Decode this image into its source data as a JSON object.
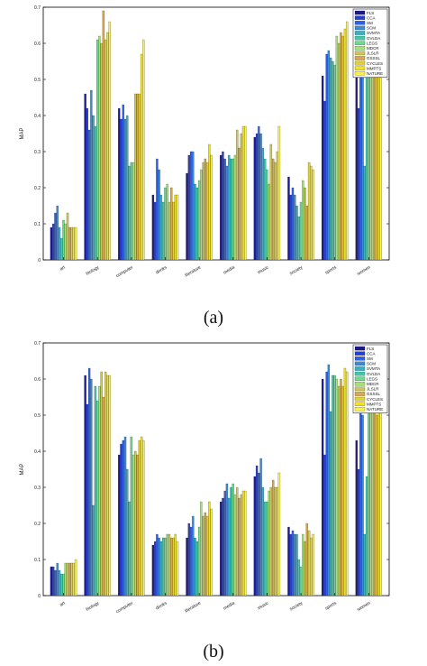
{
  "captions": [
    "(a)",
    "(b)"
  ],
  "colors": [
    "#1a1a8c",
    "#2a3fc8",
    "#3060e0",
    "#3a8ad8",
    "#3aaec8",
    "#40c8a8",
    "#70d890",
    "#a8e078",
    "#c8c860",
    "#d8a850",
    "#e0d040",
    "#f0e030",
    "#f8f050"
  ],
  "chart_data": [
    {
      "type": "bar",
      "ylabel": "MAP",
      "ylim": [
        0,
        0.7
      ],
      "yticks": [
        "0",
        "0.1",
        "0.2",
        "0.3",
        "0.4",
        "0.5",
        "0.6",
        "0.7"
      ],
      "categories": [
        "art",
        "biology",
        "computer",
        "drinks",
        "literature",
        "media",
        "music",
        "society",
        "sports",
        "women"
      ],
      "legend": [
        "FLS",
        "CCA",
        "SM",
        "SCM",
        "SVMTA",
        "GVLDA",
        "LEGS",
        "MDCR",
        "JLSLR",
        "GSSSL",
        "CYCLES",
        "MMPTS",
        "NATURE"
      ],
      "legend_position": "top-right",
      "series": [
        {
          "name": "FLS",
          "values": [
            0.09,
            0.46,
            0.42,
            0.18,
            0.24,
            0.29,
            0.34,
            0.23,
            0.51,
            0.6
          ]
        },
        {
          "name": "CCA",
          "values": [
            0.1,
            0.42,
            0.39,
            0.16,
            0.29,
            0.3,
            0.35,
            0.18,
            0.44,
            0.42
          ]
        },
        {
          "name": "SM",
          "values": [
            0.13,
            0.36,
            0.43,
            0.28,
            0.3,
            0.28,
            0.37,
            0.2,
            0.57,
            0.6
          ]
        },
        {
          "name": "SCM",
          "values": [
            0.15,
            0.47,
            0.39,
            0.25,
            0.3,
            0.26,
            0.35,
            0.18,
            0.58,
            0.6
          ]
        },
        {
          "name": "SVMTA",
          "values": [
            0.09,
            0.4,
            0.4,
            0.18,
            0.21,
            0.29,
            0.31,
            0.15,
            0.56,
            0.26
          ]
        },
        {
          "name": "GVLDA",
          "values": [
            0.06,
            0.37,
            0.26,
            0.16,
            0.2,
            0.28,
            0.28,
            0.12,
            0.55,
            0.6
          ]
        },
        {
          "name": "LEGS",
          "values": [
            0.11,
            0.61,
            0.27,
            0.2,
            0.22,
            0.28,
            0.25,
            0.16,
            0.54,
            0.51
          ]
        },
        {
          "name": "MDCR",
          "values": [
            0.1,
            0.62,
            0.27,
            0.21,
            0.25,
            0.29,
            0.21,
            0.22,
            0.62,
            0.54
          ]
        },
        {
          "name": "JLSLR",
          "values": [
            0.13,
            0.6,
            0.46,
            0.16,
            0.27,
            0.36,
            0.32,
            0.2,
            0.6,
            0.55
          ]
        },
        {
          "name": "GSSSL",
          "values": [
            0.09,
            0.69,
            0.46,
            0.2,
            0.28,
            0.31,
            0.28,
            0.15,
            0.63,
            0.6
          ]
        },
        {
          "name": "CYCLES",
          "values": [
            0.09,
            0.61,
            0.46,
            0.16,
            0.27,
            0.35,
            0.27,
            0.27,
            0.62,
            0.57
          ]
        },
        {
          "name": "MMPTS",
          "values": [
            0.09,
            0.63,
            0.57,
            0.18,
            0.32,
            0.37,
            0.3,
            0.26,
            0.64,
            0.57
          ]
        },
        {
          "name": "NATURE",
          "values": [
            0.09,
            0.66,
            0.61,
            0.18,
            0.29,
            0.37,
            0.37,
            0.25,
            0.66,
            0.59
          ]
        }
      ]
    },
    {
      "type": "bar",
      "ylabel": "MAP",
      "ylim": [
        0,
        0.7
      ],
      "yticks": [
        "0",
        "0.1",
        "0.2",
        "0.3",
        "0.4",
        "0.5",
        "0.6",
        "0.7"
      ],
      "categories": [
        "art",
        "biology",
        "computer",
        "drinks",
        "literature",
        "media",
        "music",
        "society",
        "sports",
        "women"
      ],
      "legend": [
        "FLS",
        "CCA",
        "SM",
        "SCM",
        "SVMTA",
        "GVLDA",
        "LEGS",
        "MDCR",
        "JLSLR",
        "GSSSL",
        "CYCLES",
        "MMPTS",
        "NATURE"
      ],
      "legend_position": "top-right",
      "series": [
        {
          "name": "FLS",
          "values": [
            0.08,
            0.61,
            0.39,
            0.14,
            0.16,
            0.26,
            0.33,
            0.19,
            0.6,
            0.43
          ]
        },
        {
          "name": "CCA",
          "values": [
            0.08,
            0.53,
            0.42,
            0.15,
            0.2,
            0.27,
            0.36,
            0.17,
            0.39,
            0.35
          ]
        },
        {
          "name": "SM",
          "values": [
            0.07,
            0.63,
            0.43,
            0.17,
            0.19,
            0.29,
            0.34,
            0.18,
            0.62,
            0.51
          ]
        },
        {
          "name": "SCM",
          "values": [
            0.09,
            0.6,
            0.44,
            0.16,
            0.22,
            0.31,
            0.38,
            0.17,
            0.64,
            0.5
          ]
        },
        {
          "name": "SVMTA",
          "values": [
            0.07,
            0.25,
            0.35,
            0.15,
            0.16,
            0.27,
            0.3,
            0.17,
            0.51,
            0.17
          ]
        },
        {
          "name": "GVLDA",
          "values": [
            0.06,
            0.58,
            0.26,
            0.16,
            0.15,
            0.3,
            0.26,
            0.1,
            0.61,
            0.33
          ]
        },
        {
          "name": "LEGS",
          "values": [
            0.06,
            0.54,
            0.44,
            0.16,
            0.19,
            0.31,
            0.26,
            0.08,
            0.61,
            0.52
          ]
        },
        {
          "name": "MDCR",
          "values": [
            0.09,
            0.58,
            0.39,
            0.17,
            0.26,
            0.28,
            0.29,
            0.17,
            0.6,
            0.52
          ]
        },
        {
          "name": "JLSLR",
          "values": [
            0.09,
            0.62,
            0.4,
            0.17,
            0.22,
            0.3,
            0.3,
            0.15,
            0.58,
            0.51
          ]
        },
        {
          "name": "GSSSL",
          "values": [
            0.09,
            0.55,
            0.39,
            0.16,
            0.23,
            0.27,
            0.32,
            0.2,
            0.6,
            0.55
          ]
        },
        {
          "name": "CYCLES",
          "values": [
            0.09,
            0.62,
            0.43,
            0.16,
            0.22,
            0.28,
            0.3,
            0.18,
            0.58,
            0.5
          ]
        },
        {
          "name": "MMPTS",
          "values": [
            0.09,
            0.61,
            0.44,
            0.17,
            0.26,
            0.29,
            0.3,
            0.16,
            0.63,
            0.54
          ]
        },
        {
          "name": "NATURE",
          "values": [
            0.1,
            0.61,
            0.43,
            0.15,
            0.24,
            0.29,
            0.34,
            0.17,
            0.62,
            0.52
          ]
        }
      ]
    }
  ]
}
